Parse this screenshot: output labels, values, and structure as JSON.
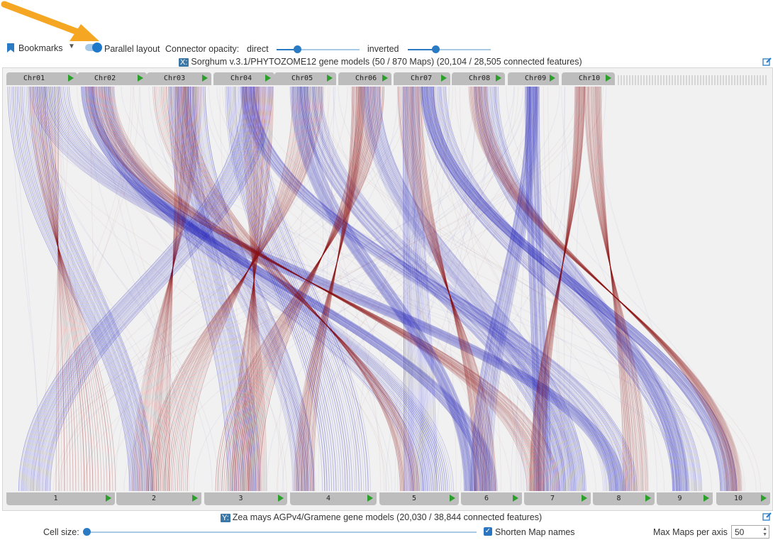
{
  "toolbar": {
    "bookmarks_label": "Bookmarks",
    "parallel_layout_label": "Parallel layout",
    "parallel_layout_on": true,
    "connector_opacity_label": "Connector opacity:",
    "direct_label": "direct",
    "direct_value": 0.25,
    "inverted_label": "inverted",
    "inverted_value": 0.33
  },
  "x_axis": {
    "badge": "X:",
    "title": "Sorghum v.3.1/PHYTOZOME12 gene models (50 / 870 Maps) (20,104 / 28,505 connected features)",
    "maps": [
      "Chr01",
      "Chr02",
      "Chr03",
      "Chr04",
      "Chr05",
      "Chr06",
      "Chr07",
      "Chr08",
      "Chr09",
      "Chr10"
    ]
  },
  "y_axis": {
    "badge": "Y:",
    "title": "Zea mays AGPv4/Gramene gene models (20,030 / 38,844 connected features)",
    "maps": [
      "1",
      "2",
      "3",
      "4",
      "5",
      "6",
      "7",
      "8",
      "9",
      "10"
    ]
  },
  "bottom": {
    "cell_size_label": "Cell size:",
    "cell_size_value": 0,
    "shorten_label": "Shorten Map names",
    "shorten_checked": true,
    "max_maps_label": "Max Maps per axis",
    "max_maps_value": "50"
  },
  "colors": {
    "direct": "#1a1ab8",
    "inverted": "#8b0e0e",
    "accent": "#2a7bc4",
    "arrow": "#f5a623",
    "play": "#2aa02a"
  }
}
